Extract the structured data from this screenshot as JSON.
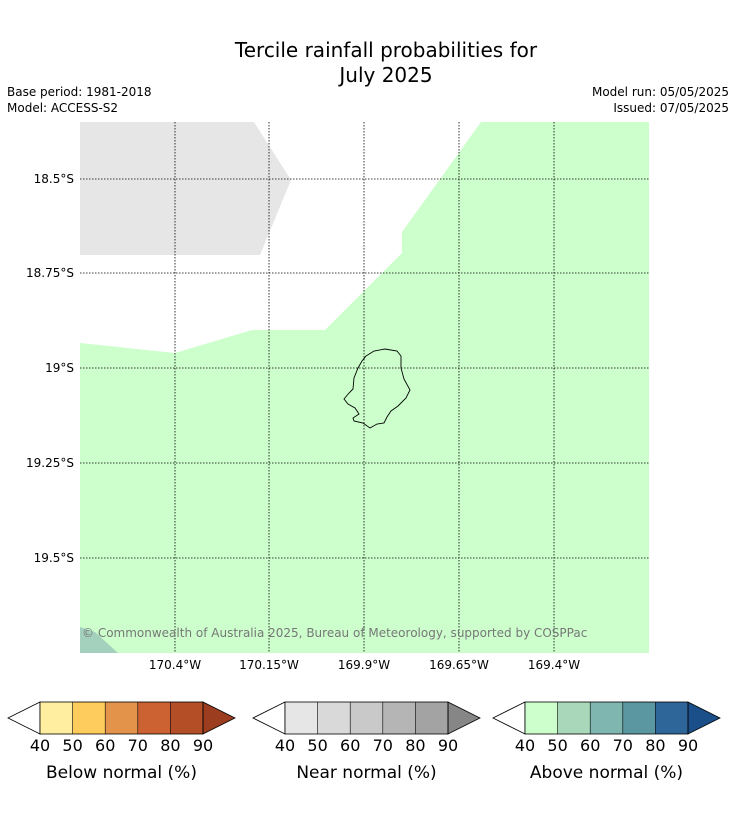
{
  "header": {
    "title_line1": "Tercile rainfall probabilities for",
    "title_line2": "July 2025",
    "base_period": "Base period: 1981-2018",
    "model": "Model: ACCESS-S2",
    "model_run": "Model run: 05/05/2025",
    "issued": "Issued: 07/05/2025"
  },
  "map": {
    "lat_labels": [
      "18.5°S",
      "18.75°S",
      "19°S",
      "19.25°S",
      "19.5°S"
    ],
    "lon_labels": [
      "170.4°W",
      "170.15°W",
      "169.9°W",
      "169.65°W",
      "169.4°W"
    ],
    "copyright": "© Commonwealth of Australia 2025, Bureau of Meteorology, supported by COSPPac",
    "colors": {
      "near_normal_region": "#e6e6e6",
      "above_normal_region": "#ccffcc",
      "above_normal_60_region": "#a3d1bd",
      "island_outline": "#000000",
      "gridline": "#000000"
    }
  },
  "colorbars": [
    {
      "label": "Below normal (%)",
      "ticks": [
        "40",
        "50",
        "60",
        "70",
        "80",
        "90"
      ],
      "colors": [
        "#ffeda0",
        "#fecc5c",
        "#e3944a",
        "#cc6231",
        "#b34e27",
        "#9c3d20"
      ]
    },
    {
      "label": "Near normal (%)",
      "ticks": [
        "40",
        "50",
        "60",
        "70",
        "80",
        "90"
      ],
      "colors": [
        "#e6e6e6",
        "#d9d9d9",
        "#c9c9c9",
        "#b5b5b5",
        "#a3a3a3",
        "#868686"
      ]
    },
    {
      "label": "Above normal (%)",
      "ticks": [
        "40",
        "50",
        "60",
        "70",
        "80",
        "90"
      ],
      "colors": [
        "#ccffcc",
        "#a8d8b9",
        "#7fb7b0",
        "#5a97a0",
        "#2f6699",
        "#1a4f8a"
      ]
    }
  ]
}
